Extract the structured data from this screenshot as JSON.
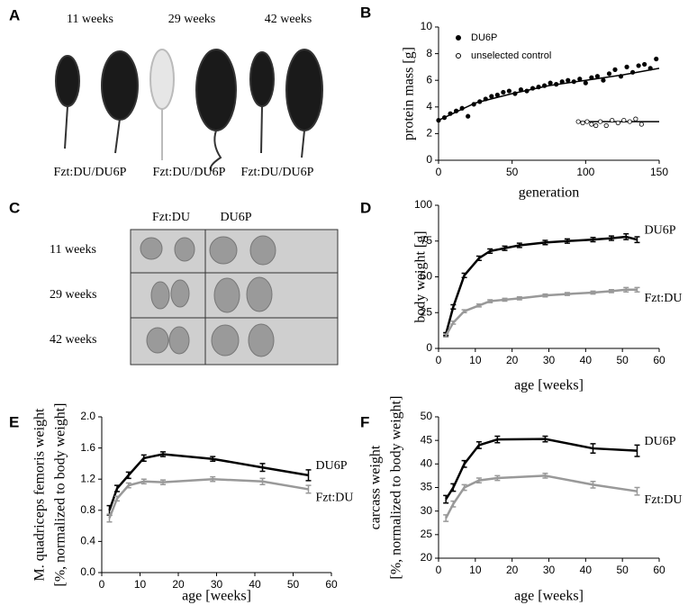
{
  "panels": [
    "A",
    "B",
    "C",
    "D",
    "E",
    "F"
  ],
  "photo_a": {
    "ages": [
      "11 weeks",
      "29 weeks",
      "42 weeks"
    ],
    "captions": [
      "Fzt:DU/DU6P",
      "Fzt:DU/DU6P",
      "Fzt:DU/DU6P"
    ]
  },
  "photo_c": {
    "columns": [
      "Fzt:DU",
      "DU6P"
    ],
    "rows": [
      "11 weeks",
      "29 weeks",
      "42 weeks"
    ]
  },
  "chart_data": [
    {
      "type": "scatter",
      "x_label": "generation",
      "y_label": "protein mass [g]",
      "xlim": [
        0,
        150
      ],
      "xticks": [
        0,
        50,
        100,
        150
      ],
      "ylim": [
        0,
        10
      ],
      "yticks": [
        0,
        2,
        4,
        6,
        8,
        10
      ],
      "legend": "upper left",
      "series": [
        {
          "name": "DU6P",
          "color": "#000000",
          "marker": "filled",
          "x": [
            0,
            4,
            8,
            12,
            16,
            20,
            24,
            28,
            32,
            36,
            40,
            44,
            48,
            52,
            56,
            60,
            64,
            68,
            72,
            76,
            80,
            84,
            88,
            92,
            96,
            100,
            104,
            108,
            112,
            116,
            120,
            124,
            128,
            132,
            136,
            140,
            144,
            148
          ],
          "values": [
            3.0,
            3.2,
            3.5,
            3.7,
            3.9,
            3.3,
            4.2,
            4.4,
            4.6,
            4.8,
            4.9,
            5.1,
            5.2,
            5.0,
            5.3,
            5.2,
            5.4,
            5.5,
            5.6,
            5.8,
            5.7,
            5.9,
            6.0,
            5.9,
            6.1,
            5.8,
            6.2,
            6.3,
            6.0,
            6.5,
            6.8,
            6.3,
            7.0,
            6.6,
            7.1,
            7.2,
            6.9,
            7.6
          ],
          "fit": {
            "x": [
              0,
              25,
              50,
              75,
              100,
              125,
              150
            ],
            "values": [
              3.0,
              4.3,
              5.0,
              5.6,
              6.0,
              6.4,
              6.9
            ]
          }
        },
        {
          "name": "unselected control",
          "color": "#000000",
          "marker": "open",
          "x": [
            95,
            98,
            101,
            104,
            107,
            110,
            114,
            118,
            122,
            126,
            130,
            134,
            138
          ],
          "values": [
            2.9,
            2.8,
            2.9,
            2.7,
            2.6,
            2.9,
            2.6,
            3.0,
            2.8,
            3.0,
            2.9,
            3.1,
            2.7
          ],
          "fit": {
            "x": [
              95,
              150
            ],
            "values": [
              2.9,
              2.9
            ]
          }
        }
      ]
    },
    {
      "type": "line",
      "x_label": "age [weeks]",
      "y_label": "body weight [g]",
      "xlim": [
        0,
        60
      ],
      "xticks": [
        0,
        10,
        20,
        30,
        40,
        50,
        60
      ],
      "ylim": [
        0,
        100
      ],
      "yticks": [
        0,
        25,
        50,
        75,
        100
      ],
      "x": [
        2,
        4,
        7,
        11,
        14,
        18,
        22,
        29,
        35,
        42,
        47,
        51,
        54
      ],
      "series": [
        {
          "name": "DU6P",
          "color": "#000000",
          "values": [
            10,
            29,
            51,
            63,
            68,
            70,
            72,
            74,
            75,
            76,
            77,
            78,
            76
          ],
          "errors": [
            1,
            1.5,
            1.5,
            1.5,
            1.5,
            1.5,
            1.5,
            1.5,
            1.5,
            1.5,
            1.5,
            2,
            2
          ]
        },
        {
          "name": "Fzt:DU",
          "color": "#999999",
          "values": [
            9,
            18,
            26,
            30,
            33,
            34,
            35,
            37,
            38,
            39,
            40,
            41,
            41
          ],
          "errors": [
            1,
            1,
            1,
            1,
            1,
            1,
            1,
            1,
            1,
            1,
            1,
            1.5,
            1.5
          ]
        }
      ]
    },
    {
      "type": "line",
      "x_label": "age [weeks]",
      "y_label": [
        "M. quadriceps femoris weight",
        "[%, normalized to body weight]"
      ],
      "xlim": [
        0,
        60
      ],
      "xticks": [
        0,
        10,
        20,
        30,
        40,
        50,
        60
      ],
      "ylim": [
        0,
        2
      ],
      "yticks": [
        {
          "value": 0,
          "label": "0.0"
        },
        0.4,
        0.8,
        1.2,
        1.6,
        {
          "value": 2,
          "label": "2.0"
        }
      ],
      "x": [
        2,
        4,
        7,
        11,
        16,
        29,
        42,
        54
      ],
      "series": [
        {
          "name": "DU6P",
          "color": "#000000",
          "values": [
            0.8,
            1.08,
            1.25,
            1.47,
            1.52,
            1.46,
            1.35,
            1.25
          ],
          "errors": [
            0.06,
            0.04,
            0.04,
            0.04,
            0.03,
            0.03,
            0.05,
            0.07
          ]
        },
        {
          "name": "Fzt:DU",
          "color": "#999999",
          "values": [
            0.7,
            0.95,
            1.12,
            1.17,
            1.16,
            1.2,
            1.17,
            1.07
          ],
          "errors": [
            0.05,
            0.03,
            0.03,
            0.03,
            0.03,
            0.03,
            0.04,
            0.05
          ]
        }
      ]
    },
    {
      "type": "line",
      "x_label": "age [weeks]",
      "y_label": [
        "carcass weight",
        "[%, normalized to body weight]"
      ],
      "xlim": [
        0,
        60
      ],
      "xticks": [
        0,
        10,
        20,
        30,
        40,
        50,
        60
      ],
      "ylim": [
        20,
        50
      ],
      "yticks": [
        20,
        25,
        30,
        35,
        40,
        45,
        50
      ],
      "x": [
        2,
        4,
        7,
        11,
        16,
        29,
        42,
        54
      ],
      "series": [
        {
          "name": "DU6P",
          "color": "#000000",
          "values": [
            32.5,
            35,
            40,
            44,
            45.2,
            45.3,
            43.3,
            42.8
          ],
          "errors": [
            0.8,
            0.8,
            0.7,
            0.7,
            0.7,
            0.6,
            1,
            1.2
          ]
        },
        {
          "name": "Fzt:DU",
          "color": "#999999",
          "values": [
            28.5,
            31.5,
            35,
            36.5,
            37,
            37.5,
            35.6,
            34.2
          ],
          "errors": [
            0.7,
            0.6,
            0.6,
            0.5,
            0.5,
            0.5,
            0.7,
            0.8
          ]
        }
      ]
    }
  ]
}
